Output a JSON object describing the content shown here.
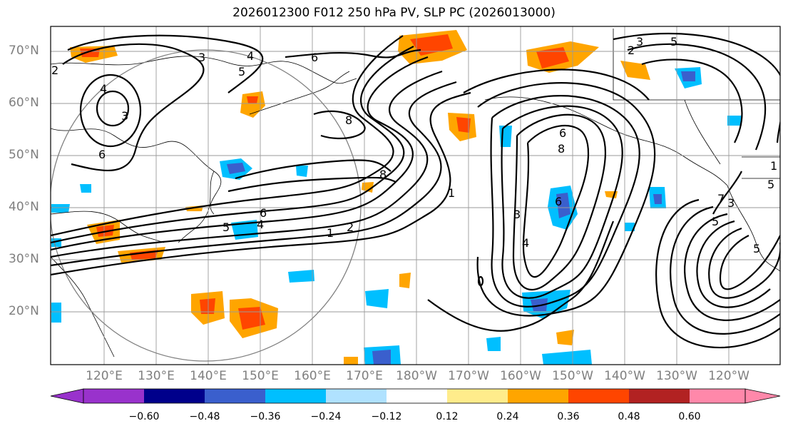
{
  "title": "2026012300 F012 250 hPa PV, SLP PC (2026013000)",
  "lat_labels": [
    "70°N",
    "60°N",
    "50°N",
    "40°N",
    "30°N",
    "20°N"
  ],
  "lon_labels": [
    "120°E",
    "130°E",
    "140°E",
    "150°E",
    "160°E",
    "170°E",
    "180°W",
    "170°W",
    "160°W",
    "150°W",
    "140°W",
    "130°W",
    "120°W"
  ],
  "colorbar": {
    "ticks": [
      "−0.60",
      "−0.48",
      "−0.36",
      "−0.24",
      "−0.12",
      "0.12",
      "0.24",
      "0.36",
      "0.48",
      "0.60"
    ],
    "colors": [
      "#9932cc",
      "#00008b",
      "#3a5fcd",
      "#00bfff",
      "#b0e2ff",
      "#ffffff",
      "#ffec8b",
      "#ffa500",
      "#ff4500",
      "#b22222",
      "#ff88aa"
    ]
  },
  "contour_labels": [
    "3",
    "4",
    "5",
    "4",
    "3",
    "6",
    "6",
    "8",
    "8",
    "6",
    "4",
    "5",
    "1",
    "2",
    "1",
    "3",
    "4",
    "6",
    "8",
    "2",
    "3",
    "5",
    "5",
    "1",
    "7",
    "5",
    "3",
    "6",
    "5",
    "2"
  ]
}
